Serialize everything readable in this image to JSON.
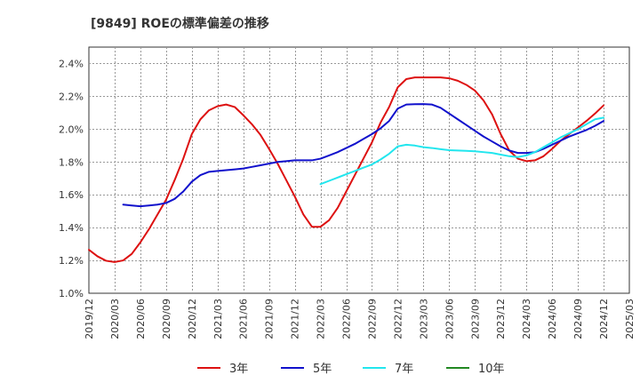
{
  "chart_data": {
    "type": "line",
    "title": "[9849]  ROEの標準偏差の推移",
    "xlabel": "",
    "ylabel": "",
    "ylim": [
      1.0,
      2.5
    ],
    "y_ticks": [
      1.0,
      1.2,
      1.4,
      1.6,
      1.8,
      2.0,
      2.2,
      2.4
    ],
    "y_tick_labels": [
      "1.0%",
      "1.2%",
      "1.4%",
      "1.6%",
      "1.8%",
      "2.0%",
      "2.2%",
      "2.4%"
    ],
    "x_ticks": [
      "2019/12",
      "2020/03",
      "2020/06",
      "2020/09",
      "2020/12",
      "2021/03",
      "2021/06",
      "2021/09",
      "2021/12",
      "2022/03",
      "2022/06",
      "2022/09",
      "2022/12",
      "2023/03",
      "2023/06",
      "2023/09",
      "2023/12",
      "2024/03",
      "2024/06",
      "2024/09",
      "2024/12",
      "2025/03"
    ],
    "grid": true,
    "legend_position": "bottom",
    "series": [
      {
        "name": "3年",
        "color": "#dd1111",
        "points": [
          [
            0,
            1.265
          ],
          [
            1,
            1.225
          ],
          [
            2,
            1.198
          ],
          [
            3,
            1.19
          ],
          [
            4,
            1.2
          ],
          [
            5,
            1.24
          ],
          [
            6,
            1.31
          ],
          [
            7,
            1.39
          ],
          [
            8,
            1.48
          ],
          [
            9,
            1.57
          ],
          [
            10,
            1.69
          ],
          [
            11,
            1.82
          ],
          [
            12,
            1.97
          ],
          [
            13,
            2.06
          ],
          [
            14,
            2.115
          ],
          [
            15,
            2.14
          ],
          [
            16,
            2.15
          ],
          [
            17,
            2.135
          ],
          [
            18,
            2.085
          ],
          [
            19,
            2.03
          ],
          [
            20,
            1.965
          ],
          [
            21,
            1.88
          ],
          [
            22,
            1.79
          ],
          [
            23,
            1.69
          ],
          [
            24,
            1.59
          ],
          [
            25,
            1.48
          ],
          [
            26,
            1.405
          ],
          [
            27,
            1.405
          ],
          [
            28,
            1.445
          ],
          [
            29,
            1.52
          ],
          [
            30,
            1.62
          ],
          [
            31,
            1.72
          ],
          [
            32,
            1.82
          ],
          [
            33,
            1.92
          ],
          [
            34,
            2.04
          ],
          [
            35,
            2.135
          ],
          [
            36,
            2.255
          ],
          [
            37,
            2.305
          ],
          [
            38,
            2.315
          ],
          [
            39,
            2.315
          ],
          [
            40,
            2.315
          ],
          [
            41,
            2.315
          ],
          [
            42,
            2.31
          ],
          [
            43,
            2.295
          ],
          [
            44,
            2.27
          ],
          [
            45,
            2.235
          ],
          [
            46,
            2.175
          ],
          [
            47,
            2.09
          ],
          [
            48,
            1.97
          ],
          [
            49,
            1.87
          ],
          [
            50,
            1.82
          ],
          [
            51,
            1.805
          ],
          [
            52,
            1.81
          ],
          [
            53,
            1.835
          ],
          [
            54,
            1.88
          ],
          [
            55,
            1.93
          ],
          [
            56,
            1.97
          ],
          [
            57,
            2.01
          ],
          [
            58,
            2.05
          ],
          [
            59,
            2.095
          ],
          [
            60,
            2.145
          ]
        ]
      },
      {
        "name": "5年",
        "color": "#1111cc",
        "points": [
          [
            4,
            1.54
          ],
          [
            5,
            1.535
          ],
          [
            6,
            1.53
          ],
          [
            7,
            1.535
          ],
          [
            8,
            1.54
          ],
          [
            9,
            1.55
          ],
          [
            10,
            1.575
          ],
          [
            11,
            1.62
          ],
          [
            12,
            1.68
          ],
          [
            13,
            1.72
          ],
          [
            14,
            1.74
          ],
          [
            15,
            1.745
          ],
          [
            16,
            1.75
          ],
          [
            17,
            1.755
          ],
          [
            18,
            1.76
          ],
          [
            19,
            1.77
          ],
          [
            20,
            1.78
          ],
          [
            21,
            1.79
          ],
          [
            22,
            1.8
          ],
          [
            23,
            1.805
          ],
          [
            24,
            1.81
          ],
          [
            25,
            1.81
          ],
          [
            26,
            1.81
          ],
          [
            27,
            1.82
          ],
          [
            28,
            1.84
          ],
          [
            29,
            1.86
          ],
          [
            30,
            1.885
          ],
          [
            31,
            1.91
          ],
          [
            32,
            1.94
          ],
          [
            33,
            1.97
          ],
          [
            34,
            2.005
          ],
          [
            35,
            2.05
          ],
          [
            36,
            2.125
          ],
          [
            37,
            2.15
          ],
          [
            38,
            2.152
          ],
          [
            39,
            2.153
          ],
          [
            40,
            2.15
          ],
          [
            41,
            2.13
          ],
          [
            42,
            2.095
          ],
          [
            43,
            2.06
          ],
          [
            44,
            2.025
          ],
          [
            45,
            1.99
          ],
          [
            46,
            1.955
          ],
          [
            47,
            1.925
          ],
          [
            48,
            1.895
          ],
          [
            49,
            1.87
          ],
          [
            50,
            1.855
          ],
          [
            51,
            1.855
          ],
          [
            52,
            1.86
          ],
          [
            53,
            1.88
          ],
          [
            54,
            1.905
          ],
          [
            55,
            1.93
          ],
          [
            56,
            1.955
          ],
          [
            57,
            1.975
          ],
          [
            58,
            1.995
          ],
          [
            59,
            2.02
          ],
          [
            60,
            2.05
          ]
        ]
      },
      {
        "name": "7年",
        "color": "#22e6ee",
        "points": [
          [
            27,
            1.665
          ],
          [
            28,
            1.685
          ],
          [
            29,
            1.705
          ],
          [
            30,
            1.725
          ],
          [
            31,
            1.745
          ],
          [
            32,
            1.765
          ],
          [
            33,
            1.785
          ],
          [
            34,
            1.815
          ],
          [
            35,
            1.85
          ],
          [
            36,
            1.895
          ],
          [
            37,
            1.905
          ],
          [
            38,
            1.9
          ],
          [
            39,
            1.89
          ],
          [
            40,
            1.885
          ],
          [
            41,
            1.878
          ],
          [
            42,
            1.872
          ],
          [
            43,
            1.87
          ],
          [
            44,
            1.868
          ],
          [
            45,
            1.865
          ],
          [
            46,
            1.86
          ],
          [
            47,
            1.855
          ],
          [
            48,
            1.845
          ],
          [
            49,
            1.835
          ],
          [
            50,
            1.83
          ],
          [
            51,
            1.84
          ],
          [
            52,
            1.86
          ],
          [
            53,
            1.89
          ],
          [
            54,
            1.92
          ],
          [
            55,
            1.95
          ],
          [
            56,
            1.975
          ],
          [
            57,
            2.0
          ],
          [
            58,
            2.03
          ],
          [
            59,
            2.06
          ],
          [
            60,
            2.07
          ]
        ]
      },
      {
        "name": "10年",
        "color": "#228822",
        "points": []
      }
    ]
  }
}
